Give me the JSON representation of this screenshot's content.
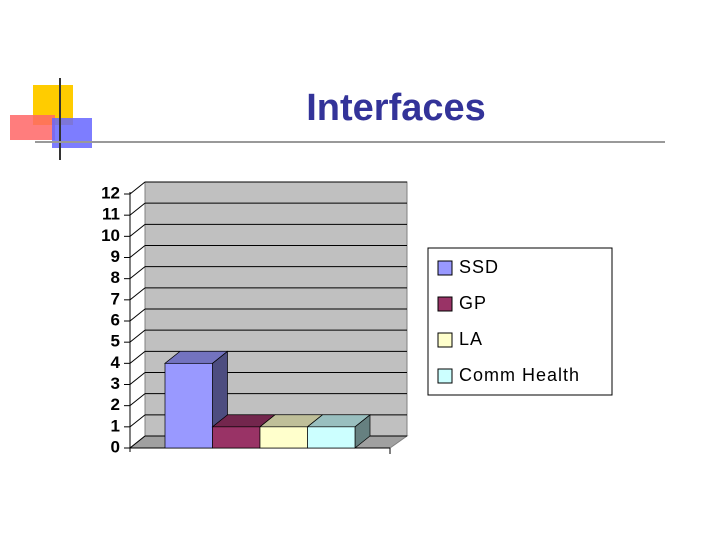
{
  "chart_data": {
    "type": "bar",
    "title": "Interfaces",
    "categories": [
      null
    ],
    "series": [
      {
        "name": "SSD",
        "color": "#9999ff",
        "values": [
          4
        ]
      },
      {
        "name": "GP",
        "color": "#993366",
        "values": [
          1
        ]
      },
      {
        "name": "LA",
        "color": "#ffffcc",
        "values": [
          1
        ]
      },
      {
        "name": "Comm Health",
        "color": "#ccffff",
        "values": [
          1
        ]
      }
    ],
    "ylim": [
      0,
      12
    ],
    "yticks": [
      0,
      1,
      2,
      3,
      4,
      5,
      6,
      7,
      8,
      9,
      10,
      11,
      12
    ],
    "grid": true,
    "legend": "right"
  }
}
